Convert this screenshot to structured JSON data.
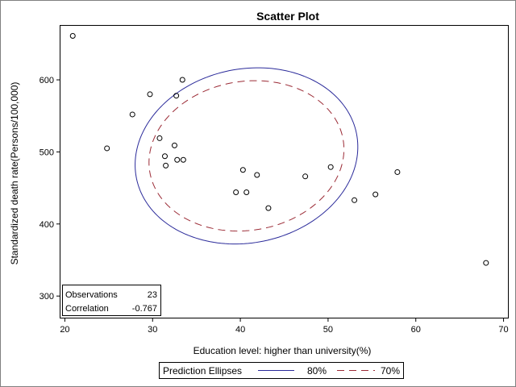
{
  "chart_data": {
    "type": "scatter",
    "title": "Scatter Plot",
    "xlabel": "Education level: higher than university(%)",
    "ylabel": "Standardized death rate(Persons/100,000)",
    "xlim": [
      19.5,
      70.5
    ],
    "ylim": [
      270,
      675
    ],
    "xticks": [
      20,
      30,
      40,
      50,
      60,
      70
    ],
    "yticks": [
      300,
      400,
      500,
      600
    ],
    "grid": false,
    "points": [
      {
        "x": 20.9,
        "y": 661
      },
      {
        "x": 24.8,
        "y": 505
      },
      {
        "x": 27.7,
        "y": 552
      },
      {
        "x": 29.7,
        "y": 580
      },
      {
        "x": 30.8,
        "y": 519
      },
      {
        "x": 31.4,
        "y": 494
      },
      {
        "x": 31.5,
        "y": 481
      },
      {
        "x": 32.5,
        "y": 509
      },
      {
        "x": 32.7,
        "y": 578
      },
      {
        "x": 32.8,
        "y": 489
      },
      {
        "x": 33.4,
        "y": 600
      },
      {
        "x": 33.5,
        "y": 489
      },
      {
        "x": 39.5,
        "y": 444
      },
      {
        "x": 40.3,
        "y": 475
      },
      {
        "x": 40.7,
        "y": 444
      },
      {
        "x": 41.9,
        "y": 468
      },
      {
        "x": 43.2,
        "y": 422
      },
      {
        "x": 47.4,
        "y": 466
      },
      {
        "x": 50.3,
        "y": 479
      },
      {
        "x": 53.0,
        "y": 433
      },
      {
        "x": 55.4,
        "y": 441
      },
      {
        "x": 57.9,
        "y": 472
      },
      {
        "x": 68.0,
        "y": 346
      }
    ],
    "ellipses": [
      {
        "name": "80%",
        "color": "#2a2a9a",
        "dash": "solid",
        "center": [
          40.7,
          494.5
        ],
        "semi_axes": [
          24.5,
          30.5
        ],
        "tilt": -0.242
      },
      {
        "name": "70%",
        "color": "#9b2a35",
        "dash": "dashed",
        "center": [
          40.7,
          494.5
        ],
        "semi_axes": [
          21.5,
          26.0
        ],
        "tilt": -0.242
      }
    ],
    "inset": {
      "rows": [
        {
          "label": "Observations",
          "value": "23"
        },
        {
          "label": "Correlation",
          "value": "-0.767"
        }
      ],
      "placement": "bottom-left"
    },
    "legend": {
      "title": "Prediction Ellipses",
      "placement": "bottom-center",
      "entries": [
        {
          "label": "80%",
          "color": "#2a2a9a",
          "dash": "solid"
        },
        {
          "label": "70%",
          "color": "#9b2a35",
          "dash": "dashed"
        }
      ]
    }
  }
}
